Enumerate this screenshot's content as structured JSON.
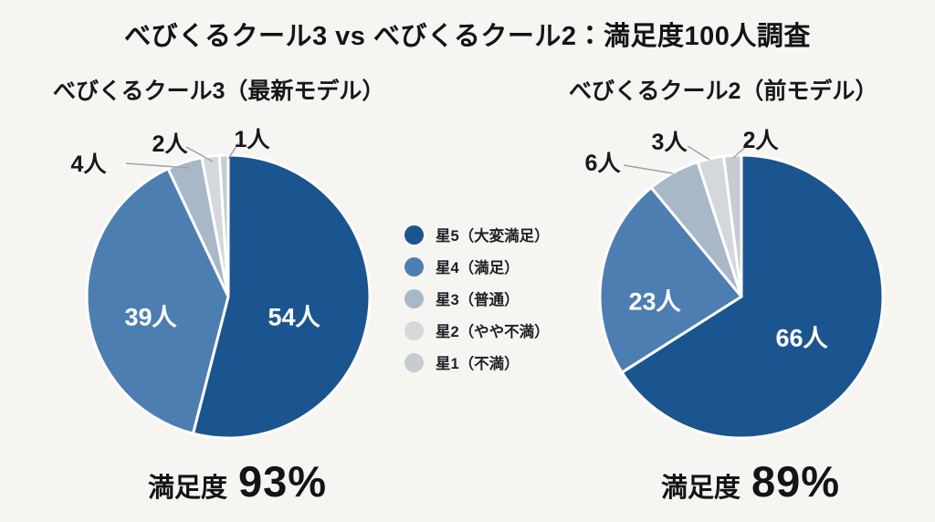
{
  "title": "べびくるクール3 vs べびくるクール2：満足度100人調査",
  "colors": {
    "background": "#f7f5f1",
    "star5": "#1b5590",
    "star4": "#4d7eb2",
    "star3": "#a9b8c6",
    "star2": "#d4d8db",
    "star1": "#c6ccd0",
    "slice_border": "#ffffff",
    "leader_line": "#9aa3ab",
    "text": "#15181c"
  },
  "legend": {
    "items": [
      {
        "color_key": "star5",
        "label": "星5（大変満足）"
      },
      {
        "color_key": "star4",
        "label": "星4（満足）"
      },
      {
        "color_key": "star3",
        "label": "星3（普通）"
      },
      {
        "color_key": "star2",
        "label": "星2（やや不満）"
      },
      {
        "color_key": "star1",
        "label": "星1（不満）"
      }
    ]
  },
  "chart_data": [
    {
      "type": "pie",
      "title": "べびくるクール3（最新モデル）",
      "unit": "人",
      "total": 100,
      "start_angle": "top",
      "direction": "clockwise",
      "slices": [
        {
          "category": "星5（大変満足）",
          "value": 54,
          "label": "54人",
          "color_key": "star5",
          "label_placement": "inside"
        },
        {
          "category": "星4（満足）",
          "value": 39,
          "label": "39人",
          "color_key": "star4",
          "label_placement": "inside"
        },
        {
          "category": "星3（普通）",
          "value": 4,
          "label": "4人",
          "color_key": "star3",
          "label_placement": "outside"
        },
        {
          "category": "星2（やや不満）",
          "value": 2,
          "label": "2人",
          "color_key": "star2",
          "label_placement": "outside"
        },
        {
          "category": "星1（不満）",
          "value": 1,
          "label": "1人",
          "color_key": "star1",
          "label_placement": "outside"
        }
      ],
      "summary": {
        "label": "満足度",
        "value": "93%"
      }
    },
    {
      "type": "pie",
      "title": "べびくるクール2（前モデル）",
      "unit": "人",
      "total": 100,
      "start_angle": "top",
      "direction": "clockwise",
      "slices": [
        {
          "category": "星5（大変満足）",
          "value": 66,
          "label": "66人",
          "color_key": "star5",
          "label_placement": "inside"
        },
        {
          "category": "星4（満足）",
          "value": 23,
          "label": "23人",
          "color_key": "star4",
          "label_placement": "inside"
        },
        {
          "category": "星3（普通）",
          "value": 6,
          "label": "6人",
          "color_key": "star3",
          "label_placement": "outside"
        },
        {
          "category": "星2（やや不満）",
          "value": 3,
          "label": "3人",
          "color_key": "star2",
          "label_placement": "outside"
        },
        {
          "category": "星1（不満）",
          "value": 2,
          "label": "2人",
          "color_key": "star1",
          "label_placement": "outside"
        }
      ],
      "summary": {
        "label": "満足度",
        "value": "89%"
      }
    }
  ]
}
